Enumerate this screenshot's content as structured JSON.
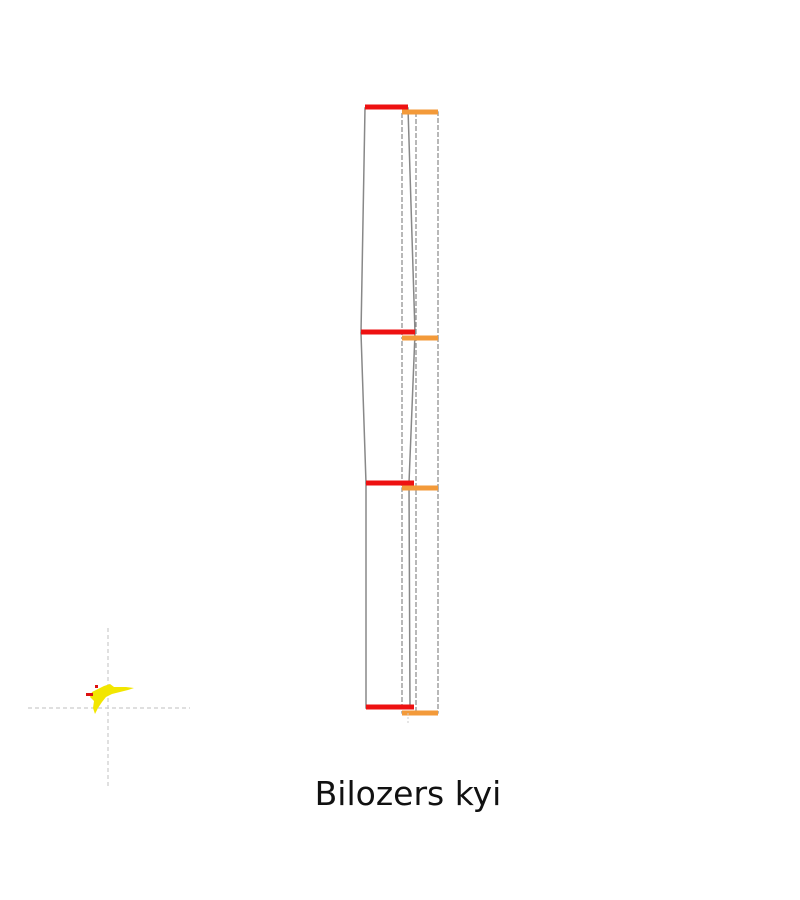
{
  "title": "Bilozers kyi",
  "colors": {
    "background": "#ffffff",
    "red_bars": "#ee1111",
    "orange_bars": "#f39a3a",
    "outline": "#888888",
    "crosshair": "#cccccc",
    "marker": "#f2e600",
    "marker_accent": "#dd1111"
  },
  "icons": {
    "location_marker": "map-location-marker-icon"
  }
}
